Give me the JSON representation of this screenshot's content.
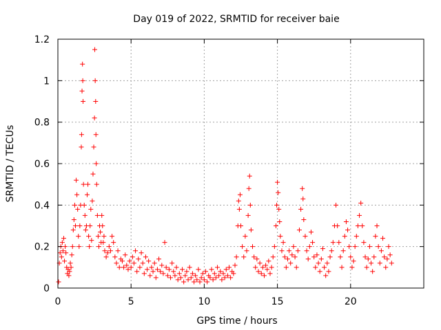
{
  "chart_data": {
    "type": "scatter",
    "title": "Day 019 of 2022, SRMTID for receiver baie",
    "xlabel": "GPS time / hours",
    "ylabel": "SRMTID / TECUs",
    "xlim": [
      0,
      25
    ],
    "ylim": [
      0,
      1.2
    ],
    "grid": true,
    "xticks": [
      0,
      5,
      10,
      15,
      20
    ],
    "xtick_labels": [
      "0",
      "5",
      "10",
      "15",
      "20"
    ],
    "yticks": [
      0,
      0.2,
      0.4,
      0.6,
      0.8,
      1,
      1.2
    ],
    "ytick_labels": [
      "0",
      "0.2",
      "0.4",
      "0.6",
      "0.8",
      "1",
      "1.2"
    ],
    "marker": "+",
    "series": [
      {
        "name": "SRMTID",
        "color": "#ff0000",
        "points": [
          [
            0.05,
            0.03
          ],
          [
            0.1,
            0.12
          ],
          [
            0.15,
            0.17
          ],
          [
            0.2,
            0.2
          ],
          [
            0.25,
            0.15
          ],
          [
            0.3,
            0.22
          ],
          [
            0.35,
            0.18
          ],
          [
            0.4,
            0.24
          ],
          [
            0.45,
            0.13
          ],
          [
            0.5,
            0.2
          ],
          [
            0.55,
            0.17
          ],
          [
            0.6,
            0.1
          ],
          [
            0.65,
            0.07
          ],
          [
            0.7,
            0.09
          ],
          [
            0.75,
            0.06
          ],
          [
            0.8,
            0.08
          ],
          [
            0.85,
            0.12
          ],
          [
            0.9,
            0.1
          ],
          [
            0.95,
            0.16
          ],
          [
            1.0,
            0.2
          ],
          [
            1.05,
            0.28
          ],
          [
            1.1,
            0.33
          ],
          [
            1.15,
            0.4
          ],
          [
            1.2,
            0.3
          ],
          [
            1.25,
            0.52
          ],
          [
            1.3,
            0.45
          ],
          [
            1.35,
            0.38
          ],
          [
            1.4,
            0.25
          ],
          [
            1.45,
            0.2
          ],
          [
            1.5,
            0.3
          ],
          [
            1.55,
            0.4
          ],
          [
            1.6,
            0.68
          ],
          [
            1.62,
            0.74
          ],
          [
            1.65,
            0.95
          ],
          [
            1.68,
            1.08
          ],
          [
            1.7,
            1.0
          ],
          [
            1.72,
            0.9
          ],
          [
            1.75,
            0.5
          ],
          [
            1.8,
            0.4
          ],
          [
            1.85,
            0.35
          ],
          [
            1.9,
            0.28
          ],
          [
            1.95,
            0.3
          ],
          [
            2.0,
            0.45
          ],
          [
            2.05,
            0.5
          ],
          [
            2.1,
            0.25
          ],
          [
            2.15,
            0.2
          ],
          [
            2.2,
            0.3
          ],
          [
            2.25,
            0.38
          ],
          [
            2.3,
            0.23
          ],
          [
            2.35,
            0.42
          ],
          [
            2.4,
            0.55
          ],
          [
            2.45,
            0.68
          ],
          [
            2.5,
            0.82
          ],
          [
            2.52,
            1.15
          ],
          [
            2.55,
            1.0
          ],
          [
            2.58,
            0.9
          ],
          [
            2.6,
            0.74
          ],
          [
            2.62,
            0.6
          ],
          [
            2.65,
            0.5
          ],
          [
            2.7,
            0.35
          ],
          [
            2.75,
            0.25
          ],
          [
            2.8,
            0.2
          ],
          [
            2.85,
            0.3
          ],
          [
            2.9,
            0.27
          ],
          [
            2.95,
            0.22
          ],
          [
            3.0,
            0.35
          ],
          [
            3.05,
            0.3
          ],
          [
            3.1,
            0.22
          ],
          [
            3.15,
            0.25
          ],
          [
            3.2,
            0.18
          ],
          [
            3.3,
            0.15
          ],
          [
            3.4,
            0.17
          ],
          [
            3.5,
            0.2
          ],
          [
            3.6,
            0.18
          ],
          [
            3.7,
            0.25
          ],
          [
            3.8,
            0.22
          ],
          [
            3.9,
            0.15
          ],
          [
            4.0,
            0.12
          ],
          [
            4.1,
            0.18
          ],
          [
            4.2,
            0.1
          ],
          [
            4.3,
            0.14
          ],
          [
            4.4,
            0.13
          ],
          [
            4.5,
            0.1
          ],
          [
            4.6,
            0.16
          ],
          [
            4.7,
            0.11
          ],
          [
            4.8,
            0.09
          ],
          [
            4.9,
            0.13
          ],
          [
            5.0,
            0.1
          ],
          [
            5.1,
            0.15
          ],
          [
            5.2,
            0.12
          ],
          [
            5.3,
            0.18
          ],
          [
            5.4,
            0.08
          ],
          [
            5.5,
            0.14
          ],
          [
            5.6,
            0.1
          ],
          [
            5.7,
            0.17
          ],
          [
            5.8,
            0.12
          ],
          [
            5.9,
            0.07
          ],
          [
            6.0,
            0.15
          ],
          [
            6.1,
            0.09
          ],
          [
            6.2,
            0.13
          ],
          [
            6.3,
            0.06
          ],
          [
            6.4,
            0.1
          ],
          [
            6.5,
            0.08
          ],
          [
            6.6,
            0.12
          ],
          [
            6.7,
            0.05
          ],
          [
            6.8,
            0.09
          ],
          [
            6.9,
            0.14
          ],
          [
            7.0,
            0.08
          ],
          [
            7.1,
            0.11
          ],
          [
            7.2,
            0.07
          ],
          [
            7.3,
            0.22
          ],
          [
            7.4,
            0.1
          ],
          [
            7.5,
            0.06
          ],
          [
            7.6,
            0.09
          ],
          [
            7.7,
            0.05
          ],
          [
            7.8,
            0.12
          ],
          [
            7.9,
            0.08
          ],
          [
            8.0,
            0.06
          ],
          [
            8.1,
            0.1
          ],
          [
            8.2,
            0.04
          ],
          [
            8.3,
            0.07
          ],
          [
            8.4,
            0.05
          ],
          [
            8.5,
            0.09
          ],
          [
            8.6,
            0.03
          ],
          [
            8.7,
            0.06
          ],
          [
            8.8,
            0.08
          ],
          [
            8.9,
            0.04
          ],
          [
            9.0,
            0.1
          ],
          [
            9.1,
            0.05
          ],
          [
            9.2,
            0.07
          ],
          [
            9.3,
            0.03
          ],
          [
            9.4,
            0.06
          ],
          [
            9.5,
            0.04
          ],
          [
            9.6,
            0.09
          ],
          [
            9.7,
            0.03
          ],
          [
            9.8,
            0.05
          ],
          [
            9.9,
            0.07
          ],
          [
            10.0,
            0.04
          ],
          [
            10.1,
            0.08
          ],
          [
            10.2,
            0.03
          ],
          [
            10.3,
            0.06
          ],
          [
            10.4,
            0.05
          ],
          [
            10.5,
            0.09
          ],
          [
            10.6,
            0.04
          ],
          [
            10.7,
            0.07
          ],
          [
            10.8,
            0.05
          ],
          [
            10.9,
            0.1
          ],
          [
            11.0,
            0.06
          ],
          [
            11.1,
            0.08
          ],
          [
            11.2,
            0.04
          ],
          [
            11.3,
            0.07
          ],
          [
            11.4,
            0.05
          ],
          [
            11.5,
            0.09
          ],
          [
            11.6,
            0.06
          ],
          [
            11.7,
            0.1
          ],
          [
            11.8,
            0.05
          ],
          [
            11.9,
            0.08
          ],
          [
            12.0,
            0.07
          ],
          [
            12.1,
            0.11
          ],
          [
            12.2,
            0.15
          ],
          [
            12.3,
            0.3
          ],
          [
            12.35,
            0.42
          ],
          [
            12.4,
            0.38
          ],
          [
            12.45,
            0.45
          ],
          [
            12.5,
            0.3
          ],
          [
            12.6,
            0.2
          ],
          [
            12.7,
            0.15
          ],
          [
            12.8,
            0.25
          ],
          [
            12.9,
            0.18
          ],
          [
            13.0,
            0.35
          ],
          [
            13.05,
            0.48
          ],
          [
            13.1,
            0.54
          ],
          [
            13.15,
            0.4
          ],
          [
            13.2,
            0.28
          ],
          [
            13.3,
            0.2
          ],
          [
            13.4,
            0.15
          ],
          [
            13.5,
            0.1
          ],
          [
            13.6,
            0.14
          ],
          [
            13.7,
            0.08
          ],
          [
            13.8,
            0.12
          ],
          [
            13.9,
            0.07
          ],
          [
            14.0,
            0.1
          ],
          [
            14.1,
            0.06
          ],
          [
            14.2,
            0.11
          ],
          [
            14.3,
            0.09
          ],
          [
            14.4,
            0.13
          ],
          [
            14.5,
            0.07
          ],
          [
            14.6,
            0.1
          ],
          [
            14.7,
            0.15
          ],
          [
            14.8,
            0.2
          ],
          [
            14.9,
            0.3
          ],
          [
            14.95,
            0.4
          ],
          [
            15.0,
            0.51
          ],
          [
            15.05,
            0.46
          ],
          [
            15.1,
            0.38
          ],
          [
            15.15,
            0.32
          ],
          [
            15.2,
            0.25
          ],
          [
            15.3,
            0.18
          ],
          [
            15.4,
            0.22
          ],
          [
            15.5,
            0.15
          ],
          [
            15.6,
            0.1
          ],
          [
            15.7,
            0.14
          ],
          [
            15.8,
            0.18
          ],
          [
            15.9,
            0.12
          ],
          [
            16.0,
            0.16
          ],
          [
            16.1,
            0.2
          ],
          [
            16.2,
            0.15
          ],
          [
            16.3,
            0.1
          ],
          [
            16.4,
            0.18
          ],
          [
            16.5,
            0.28
          ],
          [
            16.6,
            0.38
          ],
          [
            16.7,
            0.48
          ],
          [
            16.75,
            0.43
          ],
          [
            16.8,
            0.33
          ],
          [
            16.9,
            0.25
          ],
          [
            17.0,
            0.18
          ],
          [
            17.1,
            0.14
          ],
          [
            17.2,
            0.2
          ],
          [
            17.3,
            0.27
          ],
          [
            17.4,
            0.22
          ],
          [
            17.5,
            0.15
          ],
          [
            17.6,
            0.1
          ],
          [
            17.7,
            0.16
          ],
          [
            17.8,
            0.12
          ],
          [
            17.9,
            0.08
          ],
          [
            18.0,
            0.14
          ],
          [
            18.1,
            0.19
          ],
          [
            18.2,
            0.1
          ],
          [
            18.3,
            0.06
          ],
          [
            18.4,
            0.12
          ],
          [
            18.5,
            0.08
          ],
          [
            18.6,
            0.15
          ],
          [
            18.7,
            0.18
          ],
          [
            18.8,
            0.22
          ],
          [
            18.9,
            0.3
          ],
          [
            19.0,
            0.4
          ],
          [
            19.1,
            0.3
          ],
          [
            19.2,
            0.22
          ],
          [
            19.3,
            0.15
          ],
          [
            19.4,
            0.1
          ],
          [
            19.5,
            0.18
          ],
          [
            19.6,
            0.25
          ],
          [
            19.7,
            0.32
          ],
          [
            19.8,
            0.28
          ],
          [
            19.9,
            0.2
          ],
          [
            20.0,
            0.15
          ],
          [
            20.1,
            0.1
          ],
          [
            20.2,
            0.13
          ],
          [
            20.3,
            0.2
          ],
          [
            20.4,
            0.25
          ],
          [
            20.5,
            0.3
          ],
          [
            20.6,
            0.35
          ],
          [
            20.7,
            0.41
          ],
          [
            20.8,
            0.3
          ],
          [
            20.9,
            0.22
          ],
          [
            21.0,
            0.15
          ],
          [
            21.1,
            0.1
          ],
          [
            21.2,
            0.14
          ],
          [
            21.3,
            0.2
          ],
          [
            21.4,
            0.12
          ],
          [
            21.5,
            0.08
          ],
          [
            21.6,
            0.15
          ],
          [
            21.7,
            0.25
          ],
          [
            21.8,
            0.3
          ],
          [
            21.9,
            0.2
          ],
          [
            22.0,
            0.12
          ],
          [
            22.1,
            0.18
          ],
          [
            22.2,
            0.24
          ],
          [
            22.3,
            0.15
          ],
          [
            22.4,
            0.1
          ],
          [
            22.5,
            0.14
          ],
          [
            22.6,
            0.2
          ],
          [
            22.7,
            0.16
          ],
          [
            22.8,
            0.12
          ]
        ]
      }
    ]
  }
}
